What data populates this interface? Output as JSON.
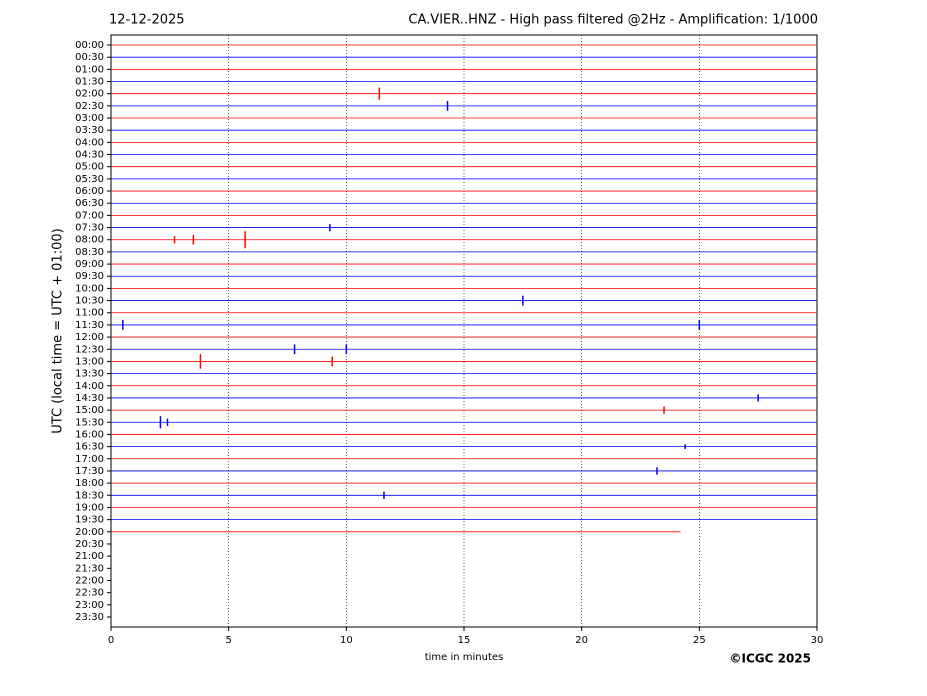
{
  "chart_data": {
    "type": "helicorder",
    "title": "12-12-2025",
    "subtitle": "CA.VIER..HNZ - High pass filtered @2Hz - Amplification: 1/1000",
    "xlabel": "time in minutes",
    "ylabel": "UTC (local time = UTC + 01:00)",
    "credit": "©ICGC 2025",
    "xlim": [
      0,
      30
    ],
    "xticks": [
      0,
      5,
      10,
      15,
      20,
      25,
      30
    ],
    "grid": true,
    "categories": [
      "00:00",
      "00:30",
      "01:00",
      "01:30",
      "02:00",
      "02:30",
      "03:00",
      "03:30",
      "04:00",
      "04:30",
      "05:00",
      "05:30",
      "06:00",
      "06:30",
      "07:00",
      "07:30",
      "08:00",
      "08:30",
      "09:00",
      "09:30",
      "10:00",
      "10:30",
      "11:00",
      "11:30",
      "12:00",
      "12:30",
      "13:00",
      "13:30",
      "14:00",
      "14:30",
      "15:00",
      "15:30",
      "16:00",
      "16:30",
      "17:00",
      "17:30",
      "18:00",
      "18:30",
      "19:00",
      "19:30",
      "20:00",
      "20:30",
      "21:00",
      "21:30",
      "22:00",
      "22:30",
      "23:00",
      "23:30"
    ],
    "colors": [
      "#ff0000",
      "#0000ff"
    ],
    "ends": [
      30,
      30,
      30,
      30,
      30,
      30,
      30,
      30,
      30,
      30,
      30,
      30,
      30,
      30,
      30,
      30,
      30,
      30,
      30,
      30,
      30,
      30,
      30,
      30,
      30,
      30,
      30,
      30,
      30,
      30,
      30,
      30,
      30,
      30,
      30,
      30,
      30,
      30,
      30,
      30,
      24.2,
      null,
      null,
      null,
      null,
      null,
      null,
      null
    ],
    "events": [
      {
        "row": 4,
        "x": 11.4,
        "amp": 0.5
      },
      {
        "row": 5,
        "x": 14.3,
        "amp": 0.4
      },
      {
        "row": 15,
        "x": 9.3,
        "amp": 0.3
      },
      {
        "row": 16,
        "x": 5.7,
        "amp": 0.7
      },
      {
        "row": 16,
        "x": 3.5,
        "amp": 0.4
      },
      {
        "row": 16,
        "x": 2.7,
        "amp": 0.3
      },
      {
        "row": 21,
        "x": 17.5,
        "amp": 0.4
      },
      {
        "row": 23,
        "x": 0.5,
        "amp": 0.4
      },
      {
        "row": 23,
        "x": 25,
        "amp": 0.4
      },
      {
        "row": 25,
        "x": 7.8,
        "amp": 0.4
      },
      {
        "row": 25,
        "x": 10.0,
        "amp": 0.4
      },
      {
        "row": 26,
        "x": 3.8,
        "amp": 0.6
      },
      {
        "row": 26,
        "x": 9.4,
        "amp": 0.4
      },
      {
        "row": 29,
        "x": 27.5,
        "amp": 0.3
      },
      {
        "row": 30,
        "x": 23.5,
        "amp": 0.3
      },
      {
        "row": 31,
        "x": 2.1,
        "amp": 0.5
      },
      {
        "row": 31,
        "x": 2.4,
        "amp": 0.3
      },
      {
        "row": 33,
        "x": 24.4,
        "amp": 0.2
      },
      {
        "row": 35,
        "x": 23.2,
        "amp": 0.3
      },
      {
        "row": 37,
        "x": 11.6,
        "amp": 0.3
      }
    ]
  }
}
